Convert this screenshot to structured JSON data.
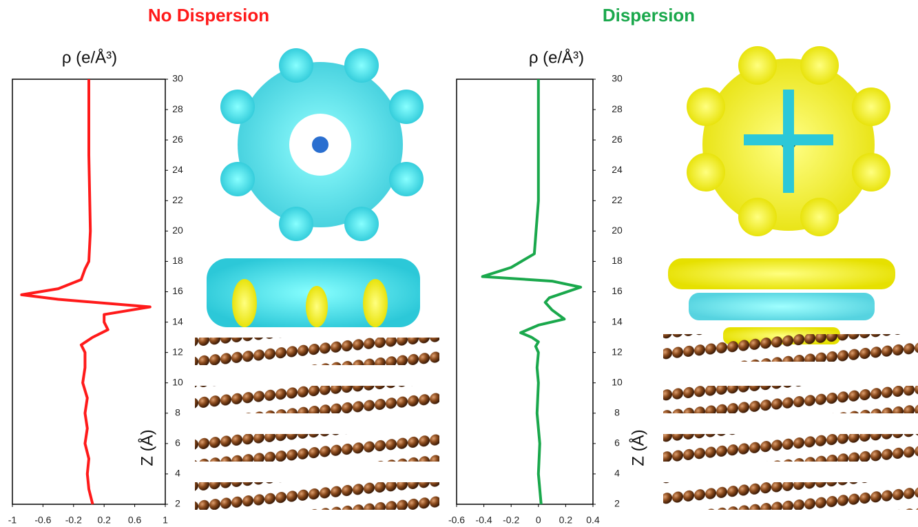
{
  "chart_data": [
    {
      "type": "line",
      "title": "No Dispersion",
      "title_color": "#ff1a1a",
      "x_label": "ρ (e/Å³)",
      "y_label": "Z (Å)",
      "xlim": [
        -1,
        1
      ],
      "xticks": [
        -1,
        -0.6,
        -0.2,
        0.2,
        0.6,
        1
      ],
      "ylim": [
        2,
        30
      ],
      "yticks": [
        2,
        4,
        6,
        8,
        10,
        12,
        14,
        16,
        18,
        20,
        22,
        24,
        26,
        28,
        30
      ],
      "series": [
        {
          "color": "#ff1a1a",
          "x": [
            0.05,
            0.0,
            -0.02,
            0.0,
            -0.05,
            -0.02,
            -0.05,
            -0.02,
            -0.08,
            -0.05,
            -0.05,
            -0.1,
            0.05,
            0.25,
            0.2,
            0.2,
            0.8,
            -0.4,
            -0.88,
            -0.4,
            -0.1,
            -0.05,
            0.0,
            0.02,
            0.0,
            0.0
          ],
          "values": [
            2,
            3,
            4,
            5,
            6,
            7,
            8,
            9,
            10,
            11,
            12,
            12.5,
            13,
            13.5,
            14,
            14.5,
            15,
            15.5,
            15.8,
            16.2,
            16.8,
            17.5,
            18,
            20,
            25,
            30
          ]
        }
      ]
    },
    {
      "type": "line",
      "title": "Dispersion",
      "title_color": "#1aa84c",
      "x_label": "ρ (e/Å³)",
      "y_label": "Z (Å)",
      "xlim": [
        -0.6,
        0.4
      ],
      "xticks": [
        -0.6,
        -0.4,
        -0.2,
        0,
        0.2,
        0.4
      ],
      "ylim": [
        2,
        30
      ],
      "yticks": [
        2,
        4,
        6,
        8,
        10,
        12,
        14,
        16,
        18,
        20,
        22,
        24,
        26,
        28,
        30
      ],
      "series": [
        {
          "color": "#1aa84c",
          "x": [
            0.02,
            0.0,
            0.01,
            -0.01,
            0.0,
            -0.01,
            0.0,
            -0.02,
            0.0,
            -0.05,
            -0.13,
            0.0,
            0.19,
            0.1,
            0.05,
            0.08,
            0.31,
            0.1,
            -0.41,
            -0.2,
            -0.03,
            0.0,
            0.0
          ],
          "values": [
            2,
            4,
            6,
            8,
            10,
            11,
            12,
            12.4,
            12.7,
            13,
            13.3,
            13.8,
            14.2,
            14.8,
            15.3,
            15.6,
            16.3,
            16.7,
            17,
            17.6,
            18.5,
            22,
            30
          ]
        }
      ]
    }
  ]
}
